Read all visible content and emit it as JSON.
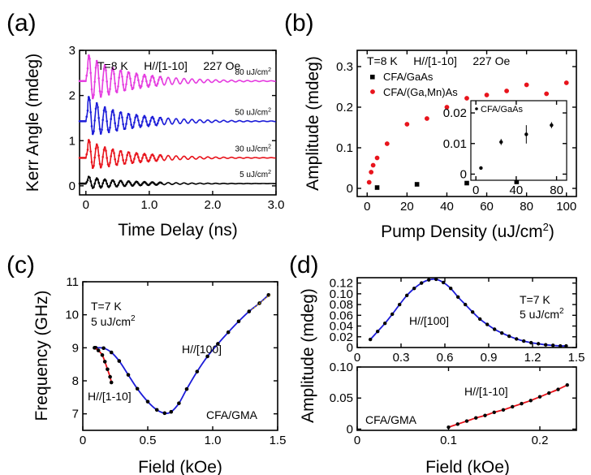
{
  "chart_data": [
    {
      "panel": "(a)",
      "type": "line",
      "xlabel": "Time Delay (ns)",
      "ylabel": "Kerr Angle (mdeg)",
      "xlim": [
        -0.1,
        3.0
      ],
      "ylim": [
        -0.2,
        3.0
      ],
      "xticks": [
        "0",
        "1.0",
        "2.0",
        "3.0"
      ],
      "yticks": [
        "0",
        "1",
        "2",
        "3"
      ],
      "annotation": "T=8 K     H//[1-10]     227 Oe",
      "series": [
        {
          "name": "5 uJ/cm2",
          "label_parts": [
            "5 uJ/cm",
            "2"
          ],
          "color": "#000000",
          "offset": 0.05,
          "amplitude": 0.13,
          "baseline_jump": 0.03
        },
        {
          "name": "30 uJ/cm2",
          "label_parts": [
            "30 uJ/cm",
            "2"
          ],
          "color": "#e8141c",
          "offset": 0.62,
          "amplitude": 0.32,
          "baseline_jump": 0.1
        },
        {
          "name": "50 uJ/cm2",
          "label_parts": [
            "50 uJ/cm",
            "2"
          ],
          "color": "#1c1cd8",
          "offset": 1.43,
          "amplitude": 0.42,
          "baseline_jump": 0.15
        },
        {
          "name": "80 uJ/cm2",
          "label_parts": [
            "80 uJ/cm",
            "2"
          ],
          "color": "#e53ce0",
          "offset": 2.32,
          "amplitude": 0.5,
          "baseline_jump": 0.1
        }
      ],
      "oscillation": {
        "frequency_ghz": 8.0,
        "decay_ns": 0.7,
        "t_start_ns": 0.03
      }
    },
    {
      "panel": "(b)",
      "type": "scatter",
      "xlabel_parts": [
        "Pump Density (uJ/cm",
        "2",
        ")"
      ],
      "ylabel": "Amplitude (mdeg)",
      "xlim": [
        -5,
        105
      ],
      "ylim": [
        -0.02,
        0.34
      ],
      "xticks": [
        "0",
        "20",
        "40",
        "60",
        "80",
        "100"
      ],
      "yticks": [
        "0",
        "0.1",
        "0.2",
        "0.3"
      ],
      "annotation": "T=8 K     H//[1-10]     227 Oe",
      "series": [
        {
          "name": "CFA/GaAs",
          "marker": "square",
          "color": "#000000",
          "x": [
            5,
            25,
            50,
            75
          ],
          "y": [
            0.002,
            0.01,
            0.013,
            0.016
          ]
        },
        {
          "name": "CFA/(Ga,Mn)As",
          "marker": "circle",
          "color": "#e8141c",
          "x": [
            1,
            2,
            3,
            5,
            10,
            20,
            30,
            40,
            50,
            60,
            70,
            80,
            90,
            100
          ],
          "y": [
            0.015,
            0.04,
            0.057,
            0.075,
            0.11,
            0.158,
            0.172,
            0.2,
            0.222,
            0.23,
            0.24,
            0.255,
            0.233,
            0.26
          ]
        }
      ],
      "inset": {
        "label": "CFA/GaAs",
        "xlim": [
          -5,
          90
        ],
        "ylim": [
          -0.002,
          0.024
        ],
        "xticks": [
          "0",
          "40",
          "80"
        ],
        "yticks": [
          "0",
          "0.01",
          "0.02"
        ],
        "x": [
          5,
          25,
          50,
          75
        ],
        "y": [
          0.002,
          0.0105,
          0.013,
          0.016
        ],
        "err": [
          0.0005,
          0.001,
          0.003,
          0.001
        ]
      }
    },
    {
      "panel": "(c)",
      "type": "line",
      "xlabel": "Field (kOe)",
      "ylabel": "Frequency (GHz)",
      "xlim": [
        0,
        1.5
      ],
      "ylim": [
        6.5,
        11
      ],
      "xticks": [
        "0",
        "0.5",
        "1.0",
        "1.5"
      ],
      "yticks": [
        "7",
        "8",
        "9",
        "10",
        "11"
      ],
      "annotation_lines": [
        "T=7 K",
        "5 uJ/cm"
      ],
      "annotation_sup": "2",
      "series_labels": [
        "H//[100]",
        "H//[1-10]"
      ],
      "corner_label": "CFA/GMA",
      "series": [
        {
          "name": "H//[100]",
          "color": "#1c1cd8",
          "x": [
            0.1,
            0.16,
            0.22,
            0.28,
            0.35,
            0.42,
            0.5,
            0.57,
            0.63,
            0.68,
            0.74,
            0.8,
            0.88,
            0.96,
            1.04,
            1.12,
            1.2,
            1.28,
            1.36,
            1.43
          ],
          "y": [
            9.0,
            8.99,
            8.86,
            8.6,
            8.18,
            7.76,
            7.37,
            7.12,
            7.02,
            7.06,
            7.32,
            7.75,
            8.28,
            8.74,
            9.12,
            9.47,
            9.8,
            10.1,
            10.35,
            10.6
          ]
        },
        {
          "name": "H//[1-10]",
          "color": "#e8141c",
          "x": [
            0.09,
            0.12,
            0.15,
            0.17,
            0.19,
            0.21,
            0.22
          ],
          "y": [
            9.0,
            8.92,
            8.78,
            8.58,
            8.35,
            8.12,
            7.95
          ]
        }
      ]
    },
    {
      "panel": "(d)",
      "type": "line",
      "ylabel": "Amplitude (mdeg)",
      "top": {
        "xlim": [
          0,
          1.5
        ],
        "ylim": [
          0,
          0.13
        ],
        "xticks": [
          "0",
          "0.3",
          "0.6",
          "0.9",
          "1.2",
          "1.5"
        ],
        "yticks": [
          "0",
          "0.02",
          "0.04",
          "0.06",
          "0.08",
          "0.10",
          "0.12"
        ],
        "annotation_lines": [
          "T=7 K",
          "5 uJ/cm"
        ],
        "annotation_sup": "2",
        "series_label": "H//[100]",
        "line_color": "#1c1cd8",
        "x": [
          0.09,
          0.14,
          0.19,
          0.24,
          0.29,
          0.34,
          0.39,
          0.44,
          0.49,
          0.54,
          0.59,
          0.64,
          0.69,
          0.74,
          0.79,
          0.84,
          0.89,
          0.94,
          0.99,
          1.04,
          1.09,
          1.14,
          1.19,
          1.24,
          1.29,
          1.34,
          1.39,
          1.43
        ],
        "y": [
          0.015,
          0.03,
          0.045,
          0.062,
          0.08,
          0.097,
          0.11,
          0.12,
          0.126,
          0.127,
          0.121,
          0.11,
          0.094,
          0.08,
          0.066,
          0.053,
          0.043,
          0.034,
          0.027,
          0.021,
          0.016,
          0.012,
          0.009,
          0.007,
          0.005,
          0.004,
          0.003,
          0.003
        ]
      },
      "bottom": {
        "xlabel": "Field (kOe)",
        "xlim": [
          0,
          0.24
        ],
        "ylim": [
          -0.002,
          0.1
        ],
        "xticks": [
          "0",
          "0.1",
          "0.2"
        ],
        "yticks": [
          "0",
          "0.05",
          "0.10"
        ],
        "series_label": "H//[1-10]",
        "corner_label": "CFA/GMA",
        "line_color": "#e8141c",
        "x": [
          0.1,
          0.11,
          0.12,
          0.13,
          0.14,
          0.15,
          0.16,
          0.17,
          0.18,
          0.19,
          0.2,
          0.21,
          0.22,
          0.23
        ],
        "y": [
          0.003,
          0.008,
          0.013,
          0.018,
          0.022,
          0.027,
          0.031,
          0.036,
          0.041,
          0.046,
          0.052,
          0.058,
          0.064,
          0.071
        ]
      }
    }
  ]
}
